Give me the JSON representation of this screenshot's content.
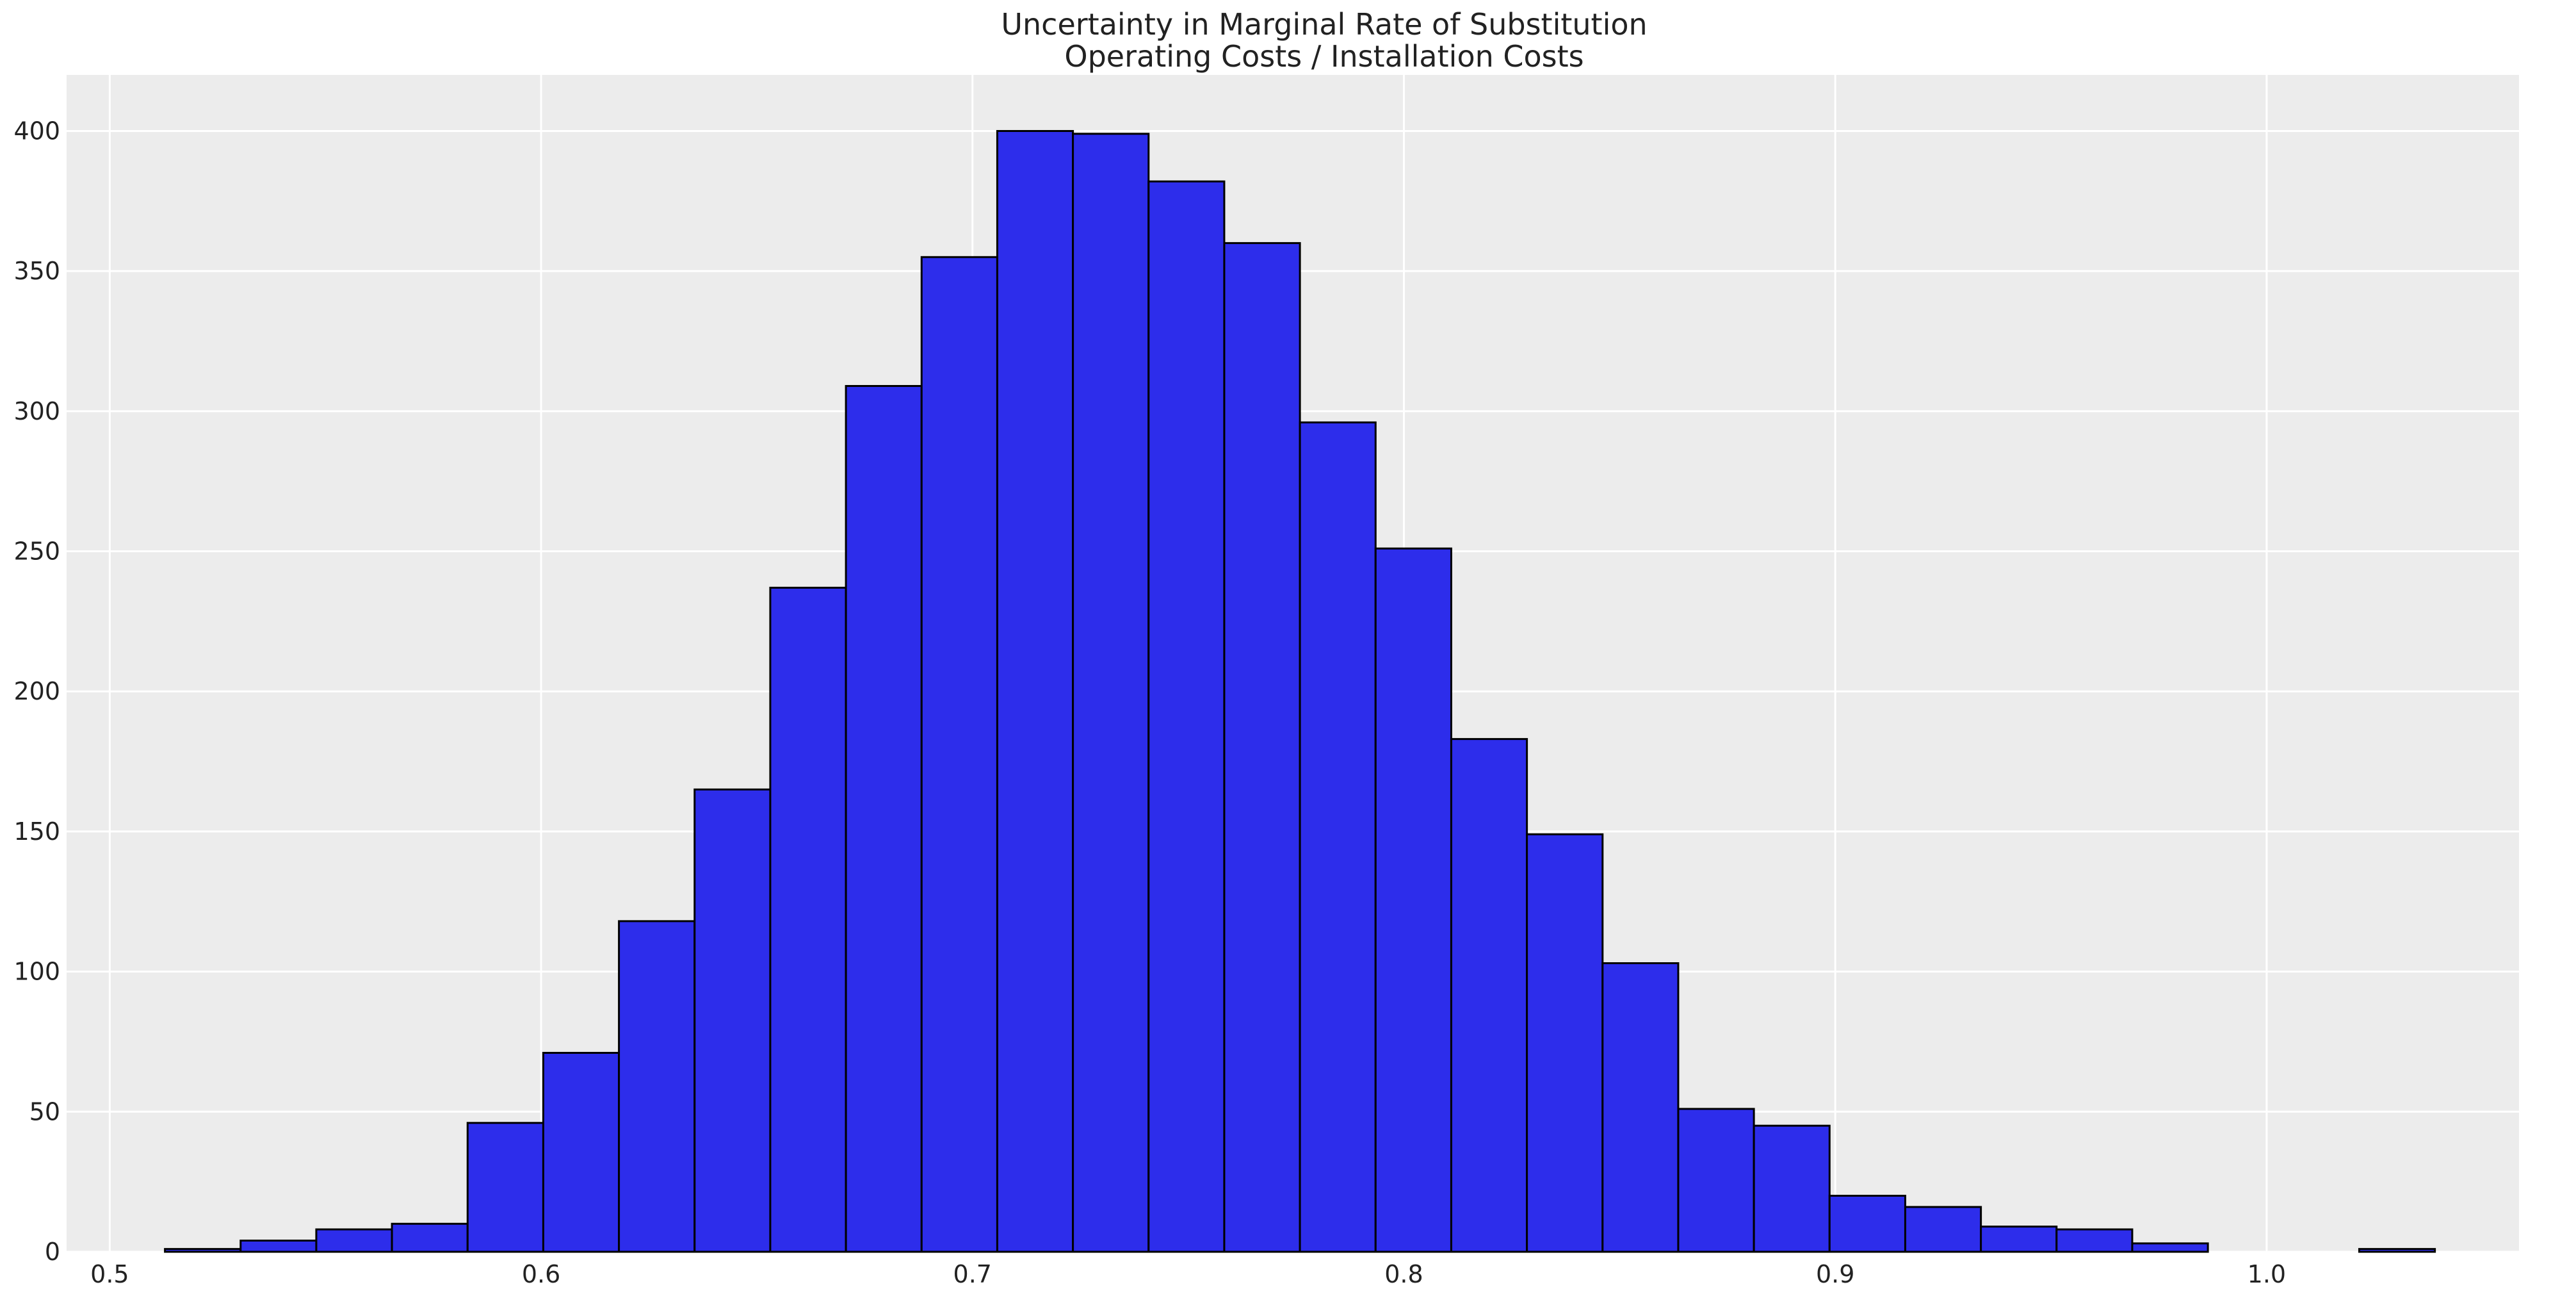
{
  "chart_data": {
    "type": "bar",
    "title": "Uncertainty in Marginal Rate of Substitution",
    "subtitle": "Operating Costs / Installation Costs",
    "xlabel": "",
    "ylabel": "",
    "xlim": [
      0.49,
      1.0585
    ],
    "ylim": [
      0,
      420
    ],
    "grid": true,
    "x_ticks": [
      0.5,
      0.6,
      0.7,
      0.8,
      0.9,
      1.0
    ],
    "x_tick_labels": [
      "0.5",
      "0.6",
      "0.7",
      "0.8",
      "0.9",
      "1.0"
    ],
    "y_ticks": [
      0,
      50,
      100,
      150,
      200,
      250,
      300,
      350,
      400
    ],
    "y_tick_labels": [
      "0",
      "50",
      "100",
      "150",
      "200",
      "250",
      "300",
      "350",
      "400"
    ],
    "bin_start": 0.5128,
    "bin_width": 0.01754,
    "values": [
      1,
      4,
      8,
      10,
      46,
      71,
      118,
      165,
      237,
      309,
      355,
      400,
      399,
      382,
      360,
      296,
      251,
      183,
      149,
      103,
      51,
      45,
      20,
      16,
      9,
      8,
      3,
      0,
      0,
      1
    ],
    "colors": {
      "bar_fill": "#2d2deb",
      "bar_edge": "#000000",
      "plot_background": "#ececec",
      "grid": "#ffffff"
    }
  }
}
